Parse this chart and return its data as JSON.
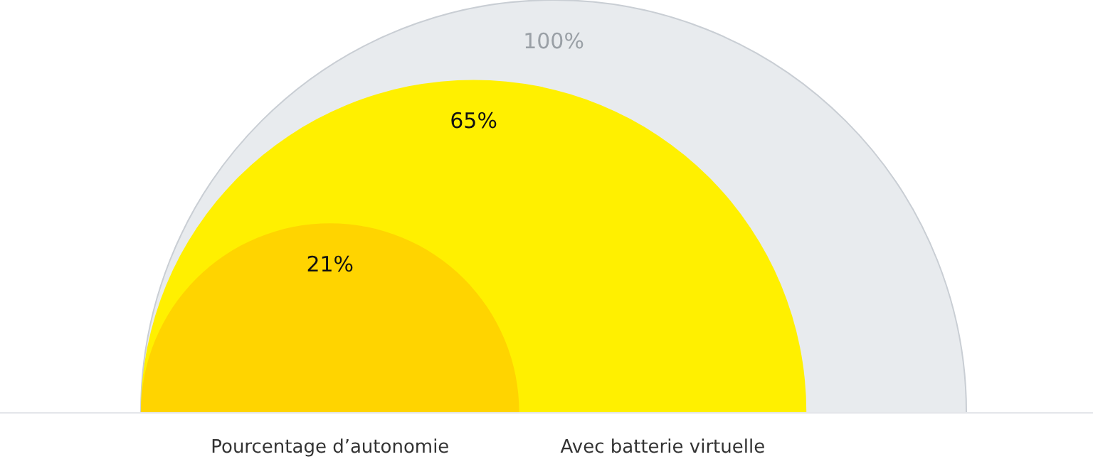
{
  "chart_data": {
    "type": "other",
    "categories": [
      null,
      "Avec batterie virtuelle",
      "Pourcentage d’autonomie"
    ],
    "values": [
      100,
      65,
      21
    ],
    "value_labels": [
      "100%",
      "65%",
      "21%"
    ],
    "colors": [
      "#e8ebee",
      "#fff000",
      "#ffd400"
    ]
  }
}
